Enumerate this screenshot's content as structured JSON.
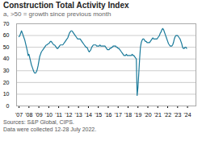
{
  "chart_data": {
    "type": "line",
    "title": "Construction Total Activity Index",
    "subtitle": "a, >50 = growth since previous month",
    "source": [
      "Sources: S&P Global, CIPS.",
      "Data were collected 12-28 July 2022."
    ],
    "color": "#1a7a9a",
    "xlim": [
      2006.75,
      2024.85
    ],
    "xticks": [
      {
        "value": 2007,
        "label": "'07"
      },
      {
        "value": 2008,
        "label": "'08"
      },
      {
        "value": 2009,
        "label": "'09"
      },
      {
        "value": 2010,
        "label": "'10"
      },
      {
        "value": 2011,
        "label": "'11"
      },
      {
        "value": 2012,
        "label": "'12"
      },
      {
        "value": 2013,
        "label": "'13"
      },
      {
        "value": 2014,
        "label": "'14"
      },
      {
        "value": 2015,
        "label": "'15"
      },
      {
        "value": 2016,
        "label": "'16"
      },
      {
        "value": 2017,
        "label": "'17"
      },
      {
        "value": 2018,
        "label": "'18"
      },
      {
        "value": 2019,
        "label": "'19"
      },
      {
        "value": 2020,
        "label": "'20"
      },
      {
        "value": 2021,
        "label": "'21"
      },
      {
        "value": 2022,
        "label": "'22"
      },
      {
        "value": 2023,
        "label": "'23"
      },
      {
        "value": 2024,
        "label": "'24"
      }
    ],
    "ylim": [
      0,
      70
    ],
    "yticks": [
      0,
      10,
      20,
      30,
      40,
      50,
      60,
      70
    ],
    "grid": true,
    "x": [
      2007,
      2007.0833,
      2007.1667,
      2007.25,
      2007.3333,
      2007.4167,
      2007.5,
      2007.5833,
      2007.6667,
      2007.75,
      2007.8333,
      2007.9167,
      2008,
      2008.0833,
      2008.1667,
      2008.25,
      2008.3333,
      2008.4167,
      2008.5,
      2008.5833,
      2008.6667,
      2008.75,
      2008.8333,
      2008.9167,
      2009,
      2009.0833,
      2009.1667,
      2009.25,
      2009.3333,
      2009.4167,
      2009.5,
      2009.5833,
      2009.6667,
      2009.75,
      2009.8333,
      2009.9167,
      2010,
      2010.0833,
      2010.1667,
      2010.25,
      2010.3333,
      2010.4167,
      2010.5,
      2010.5833,
      2010.6667,
      2010.75,
      2010.8333,
      2010.9167,
      2011,
      2011.0833,
      2011.1667,
      2011.25,
      2011.3333,
      2011.4167,
      2011.5,
      2011.5833,
      2011.6667,
      2011.75,
      2011.8333,
      2011.9167,
      2012,
      2012.0833,
      2012.1667,
      2012.25,
      2012.3333,
      2012.4167,
      2012.5,
      2012.5833,
      2012.6667,
      2012.75,
      2012.8333,
      2012.9167,
      2013,
      2013.0833,
      2013.1667,
      2013.25,
      2013.3333,
      2013.4167,
      2013.5,
      2013.5833,
      2013.6667,
      2013.75,
      2013.8333,
      2013.9167,
      2014,
      2014.0833,
      2014.1667,
      2014.25,
      2014.3333,
      2014.4167,
      2014.5,
      2014.5833,
      2014.6667,
      2014.75,
      2014.8333,
      2014.9167,
      2015,
      2015.0833,
      2015.1667,
      2015.25,
      2015.3333,
      2015.4167,
      2015.5,
      2015.5833,
      2015.6667,
      2015.75,
      2015.8333,
      2015.9167,
      2016,
      2016.0833,
      2016.1667,
      2016.25,
      2016.3333,
      2016.4167,
      2016.5,
      2016.5833,
      2016.6667,
      2016.75,
      2016.8333,
      2016.9167,
      2017,
      2017.0833,
      2017.1667,
      2017.25,
      2017.3333,
      2017.4167,
      2017.5,
      2017.5833,
      2017.6667,
      2017.75,
      2017.8333,
      2017.9167,
      2018,
      2018.0833,
      2018.1667,
      2018.25,
      2018.3333,
      2018.4167,
      2018.5,
      2018.5833,
      2018.6667,
      2018.75,
      2018.8333,
      2018.9167,
      2019,
      2019.0833,
      2019.1667,
      2019.25,
      2019.3333,
      2019.4167,
      2019.5,
      2019.5833,
      2019.6667,
      2019.75,
      2019.8333,
      2019.9167,
      2020,
      2020.0833,
      2020.1667,
      2020.25,
      2020.3333,
      2020.4167,
      2020.5,
      2020.5833,
      2020.6667,
      2020.75,
      2020.8333,
      2020.9167,
      2021,
      2021.0833,
      2021.1667,
      2021.25,
      2021.3333,
      2021.4167,
      2021.5,
      2021.5833,
      2021.6667,
      2021.75,
      2021.8333,
      2021.9167,
      2022,
      2022.0833,
      2022.1667,
      2022.25,
      2022.3333,
      2022.4167,
      2022.5,
      2022.5833,
      2022.6667,
      2022.75,
      2022.8333,
      2022.9167,
      2023,
      2023.0833,
      2023.1667,
      2023.25,
      2023.3333,
      2023.4167,
      2023.5,
      2023.5833,
      2023.6667,
      2023.75,
      2023.8333,
      2023.9167
    ],
    "values": [
      59,
      60,
      62,
      64,
      62,
      60,
      58,
      56,
      53,
      50,
      47,
      43,
      44,
      41,
      38,
      35,
      33,
      31,
      29,
      28,
      28,
      29,
      31,
      34,
      38,
      42,
      44,
      46,
      47,
      48,
      49,
      50,
      51,
      52,
      52,
      53,
      53,
      54,
      55,
      55,
      54,
      53,
      52,
      52,
      51,
      50,
      49,
      49,
      50,
      51,
      52,
      52,
      52,
      52,
      53,
      54,
      55,
      56,
      57,
      58,
      60,
      62,
      63,
      64,
      64,
      63,
      62,
      61,
      60,
      59,
      58,
      57,
      57,
      57,
      57,
      56,
      55,
      54,
      53,
      52,
      51,
      50,
      50,
      49,
      47,
      46,
      47,
      48,
      50,
      51,
      52,
      52,
      52,
      52,
      51,
      51,
      51,
      51,
      52,
      51,
      51,
      51,
      51,
      51,
      51,
      50,
      49,
      48,
      48,
      48,
      49,
      49,
      50,
      50,
      51,
      51,
      51,
      51,
      50,
      50,
      49,
      49,
      48,
      47,
      46,
      45,
      44,
      43,
      43,
      43,
      44,
      43,
      43,
      43,
      43,
      43,
      43,
      44,
      43,
      43,
      42,
      41,
      40,
      9,
      16,
      28,
      40,
      50,
      54,
      56,
      57,
      57,
      56,
      55,
      55,
      54,
      54,
      54,
      54,
      55,
      56,
      57,
      58,
      57,
      57,
      57,
      57,
      57,
      58,
      59,
      60,
      62,
      63,
      65,
      66,
      65,
      63,
      61,
      59,
      57,
      55,
      53,
      52,
      51,
      51,
      51,
      52,
      54,
      57,
      59,
      60,
      60,
      60,
      59,
      58,
      57,
      55,
      53,
      50,
      49,
      49,
      50,
      50,
      49
    ]
  }
}
